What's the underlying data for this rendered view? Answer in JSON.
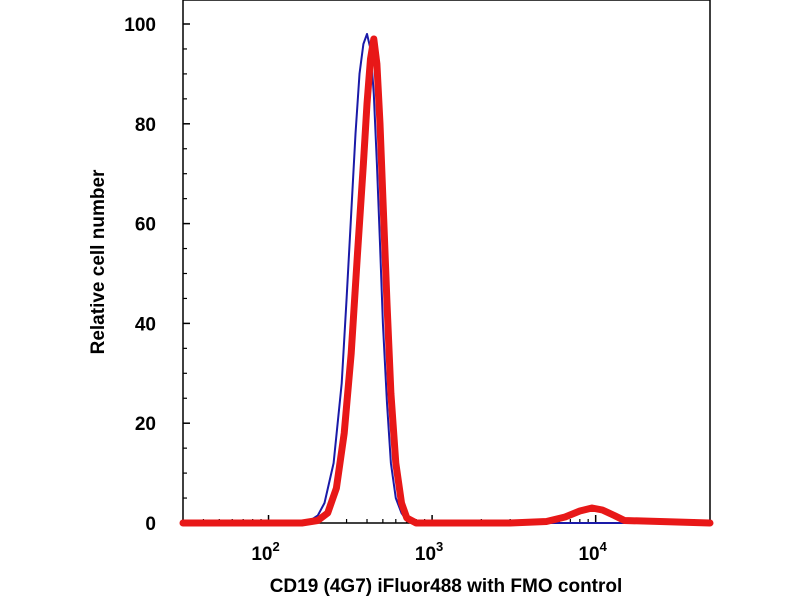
{
  "chart_data": {
    "type": "line",
    "title": "",
    "xlabel": "CD19 (4G7) iFluor488 with FMO control",
    "ylabel": "Relative cell number",
    "xscale": "log",
    "xlim": [
      30,
      50000
    ],
    "ylim": [
      0,
      100
    ],
    "x_ticks": [
      {
        "value": 100,
        "base": "10",
        "exp": "2"
      },
      {
        "value": 1000,
        "base": "10",
        "exp": "3"
      },
      {
        "value": 10000,
        "base": "10",
        "exp": "4"
      }
    ],
    "y_ticks": [
      "0",
      "20",
      "40",
      "60",
      "80",
      "100"
    ],
    "grid": false,
    "legend": "none",
    "series": [
      {
        "color": "#1a1aa8",
        "x": [
          30,
          150,
          180,
          200,
          220,
          250,
          280,
          300,
          320,
          340,
          360,
          380,
          400,
          420,
          440,
          460,
          480,
          500,
          530,
          560,
          600,
          650,
          700,
          800,
          1000,
          10000,
          50000
        ],
        "y": [
          0,
          0,
          0.5,
          1.5,
          4,
          12,
          28,
          45,
          62,
          78,
          90,
          96,
          98,
          95,
          86,
          72,
          56,
          40,
          24,
          12,
          5,
          2,
          0.5,
          0,
          0,
          0,
          0
        ]
      },
      {
        "color": "#e81818",
        "x": [
          30,
          160,
          200,
          230,
          260,
          290,
          320,
          350,
          380,
          400,
          420,
          440,
          460,
          480,
          500,
          530,
          560,
          600,
          650,
          700,
          800,
          1000,
          3000,
          5000,
          6500,
          8000,
          9500,
          11000,
          13000,
          15000,
          50000
        ],
        "y": [
          0,
          0,
          0.5,
          2,
          7,
          18,
          34,
          54,
          72,
          84,
          93,
          97,
          92,
          80,
          65,
          44,
          26,
          12,
          4,
          1,
          0,
          0,
          0,
          0.3,
          1.2,
          2.4,
          3,
          2.6,
          1.5,
          0.5,
          0
        ]
      }
    ]
  }
}
